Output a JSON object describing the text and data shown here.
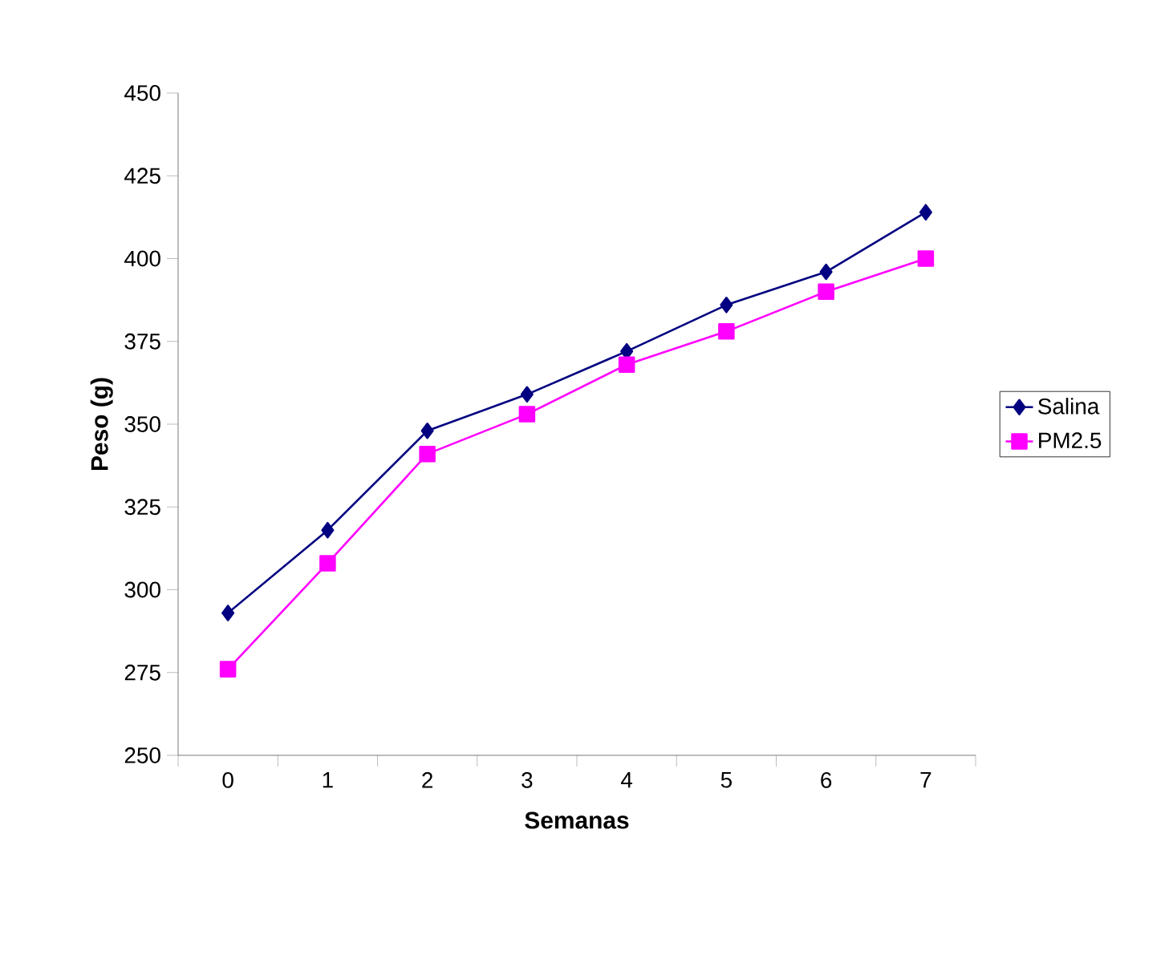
{
  "chart_data": {
    "type": "line",
    "xlabel": "Semanas",
    "ylabel": "Peso (g)",
    "categories": [
      "0",
      "1",
      "2",
      "3",
      "4",
      "5",
      "6",
      "7"
    ],
    "series": [
      {
        "name": "Salina",
        "color": "#000080",
        "marker": "diamond",
        "values": [
          293,
          318,
          348,
          359,
          372,
          386,
          396,
          414
        ]
      },
      {
        "name": "PM2.5",
        "color": "#ff00ff",
        "marker": "square",
        "values": [
          276,
          308,
          341,
          353,
          368,
          378,
          390,
          400
        ]
      }
    ],
    "ylim": [
      250,
      450
    ],
    "yticks": [
      250,
      275,
      300,
      325,
      350,
      375,
      400,
      425,
      450
    ],
    "grid": false,
    "legend": "right"
  }
}
